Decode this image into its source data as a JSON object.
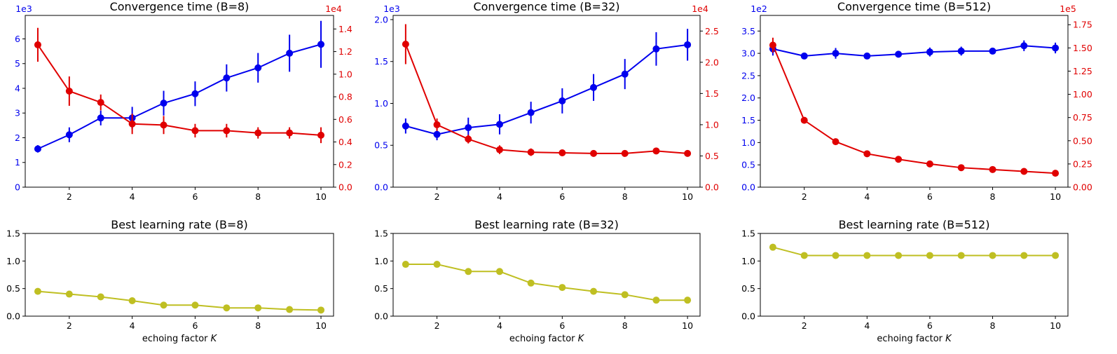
{
  "colors": {
    "blue": "#0000ee",
    "red": "#e00000",
    "olive": "#bfbf22",
    "axis": "#000000"
  },
  "chart_data": [
    {
      "type": "line",
      "title": "Convergence time (B=8)",
      "x": [
        1,
        2,
        3,
        4,
        5,
        6,
        7,
        8,
        9,
        10
      ],
      "x_ticks": [
        2,
        4,
        6,
        8,
        10
      ],
      "x_tick_labels": [
        "2",
        "4",
        "6",
        "8",
        "10"
      ],
      "xlim": [
        0.6,
        10.4
      ],
      "left_axis": {
        "multiplier_label": "1e3",
        "ylim": [
          0,
          6.95
        ],
        "ticks": [
          0,
          1,
          2,
          3,
          4,
          5,
          6
        ],
        "tick_labels": [
          "0",
          "1",
          "2",
          "3",
          "4",
          "5",
          "6"
        ]
      },
      "right_axis": {
        "multiplier_label": "1e4",
        "ylim": [
          0,
          1.52
        ],
        "ticks": [
          0,
          0.2,
          0.4,
          0.6,
          0.8,
          1.0,
          1.2,
          1.4
        ],
        "tick_labels": [
          "0.0",
          "0.2",
          "0.4",
          "0.6",
          "0.8",
          "1.0",
          "1.2",
          "1.4"
        ]
      },
      "series": [
        {
          "name": "blue",
          "axis": "left",
          "values": [
            1.55,
            2.12,
            2.8,
            2.8,
            3.4,
            3.78,
            4.42,
            4.83,
            5.42,
            5.78
          ],
          "errors": [
            0.15,
            0.3,
            0.3,
            0.45,
            0.5,
            0.5,
            0.55,
            0.6,
            0.75,
            0.95
          ]
        },
        {
          "name": "red",
          "axis": "right",
          "values": [
            1.26,
            0.85,
            0.75,
            0.56,
            0.55,
            0.5,
            0.5,
            0.48,
            0.48,
            0.46
          ],
          "errors": [
            0.15,
            0.13,
            0.07,
            0.09,
            0.08,
            0.06,
            0.06,
            0.05,
            0.05,
            0.07
          ]
        }
      ]
    },
    {
      "type": "line",
      "title": "Convergence time (B=32)",
      "x": [
        1,
        2,
        3,
        4,
        5,
        6,
        7,
        8,
        9,
        10
      ],
      "x_ticks": [
        2,
        4,
        6,
        8,
        10
      ],
      "x_tick_labels": [
        "2",
        "4",
        "6",
        "8",
        "10"
      ],
      "xlim": [
        0.6,
        10.4
      ],
      "left_axis": {
        "multiplier_label": "1e3",
        "ylim": [
          0,
          2.05
        ],
        "ticks": [
          0,
          0.5,
          1.0,
          1.5,
          2.0
        ],
        "tick_labels": [
          "0.0",
          "0.5",
          "1.0",
          "1.5",
          "2.0"
        ]
      },
      "right_axis": {
        "multiplier_label": "1e4",
        "ylim": [
          0,
          2.75
        ],
        "ticks": [
          0,
          0.5,
          1.0,
          1.5,
          2.0,
          2.5
        ],
        "tick_labels": [
          "0.0",
          "0.5",
          "1.0",
          "1.5",
          "2.0",
          "2.5"
        ]
      },
      "series": [
        {
          "name": "blue",
          "axis": "left",
          "values": [
            0.73,
            0.63,
            0.71,
            0.75,
            0.89,
            1.03,
            1.19,
            1.35,
            1.65,
            1.7
          ],
          "errors": [
            0.09,
            0.07,
            0.12,
            0.12,
            0.13,
            0.15,
            0.16,
            0.18,
            0.2,
            0.19
          ]
        },
        {
          "name": "red",
          "axis": "right",
          "values": [
            2.29,
            1.0,
            0.77,
            0.6,
            0.56,
            0.55,
            0.54,
            0.54,
            0.58,
            0.54
          ],
          "errors": [
            0.32,
            0.1,
            0.07,
            0.07,
            0.06,
            0.05,
            0.04,
            0.04,
            0.04,
            0.04
          ]
        }
      ]
    },
    {
      "type": "line",
      "title": "Convergence time (B=512)",
      "x": [
        1,
        2,
        3,
        4,
        5,
        6,
        7,
        8,
        9,
        10
      ],
      "x_ticks": [
        2,
        4,
        6,
        8,
        10
      ],
      "x_tick_labels": [
        "2",
        "4",
        "6",
        "8",
        "10"
      ],
      "xlim": [
        0.6,
        10.4
      ],
      "left_axis": {
        "multiplier_label": "1e2",
        "ylim": [
          0,
          3.85
        ],
        "ticks": [
          0,
          0.5,
          1.0,
          1.5,
          2.0,
          2.5,
          3.0,
          3.5
        ],
        "tick_labels": [
          "0.0",
          "0.5",
          "1.0",
          "1.5",
          "2.0",
          "2.5",
          "3.0",
          "3.5"
        ]
      },
      "right_axis": {
        "multiplier_label": "1e5",
        "ylim": [
          0,
          1.85
        ],
        "ticks": [
          0,
          0.25,
          0.5,
          0.75,
          1.0,
          1.25,
          1.5,
          1.75
        ],
        "tick_labels": [
          "0.00",
          "0.25",
          "0.50",
          "0.75",
          "1.00",
          "1.25",
          "1.50",
          "1.75"
        ]
      },
      "series": [
        {
          "name": "blue",
          "axis": "left",
          "values": [
            3.1,
            2.94,
            3.0,
            2.94,
            2.98,
            3.03,
            3.05,
            3.05,
            3.17,
            3.12
          ],
          "errors": [
            0.15,
            0.05,
            0.12,
            0.05,
            0.07,
            0.1,
            0.1,
            0.07,
            0.12,
            0.12
          ]
        },
        {
          "name": "red",
          "axis": "right",
          "values": [
            1.53,
            0.72,
            0.49,
            0.36,
            0.3,
            0.25,
            0.21,
            0.19,
            0.17,
            0.15
          ],
          "errors": [
            0.08,
            0.02,
            0.02,
            0.02,
            0.02,
            0.02,
            0.02,
            0.02,
            0.02,
            0.02
          ]
        }
      ]
    },
    {
      "type": "line",
      "title": "Best learning rate (B=8)",
      "x": [
        1,
        2,
        3,
        4,
        5,
        6,
        7,
        8,
        9,
        10
      ],
      "x_ticks": [
        2,
        4,
        6,
        8,
        10
      ],
      "x_tick_labels": [
        "2",
        "4",
        "6",
        "8",
        "10"
      ],
      "xlim": [
        0.6,
        10.4
      ],
      "xlabel": "echoing factor",
      "xlabel_var": "K",
      "left_axis": {
        "ylim": [
          0,
          1.5
        ],
        "ticks": [
          0,
          0.5,
          1.0,
          1.5
        ],
        "tick_labels": [
          "0.0",
          "0.5",
          "1.0",
          "1.5"
        ]
      },
      "series": [
        {
          "name": "olive",
          "axis": "left",
          "values": [
            0.45,
            0.4,
            0.35,
            0.28,
            0.2,
            0.2,
            0.15,
            0.15,
            0.12,
            0.11
          ]
        }
      ]
    },
    {
      "type": "line",
      "title": "Best learning rate (B=32)",
      "x": [
        1,
        2,
        3,
        4,
        5,
        6,
        7,
        8,
        9,
        10
      ],
      "x_ticks": [
        2,
        4,
        6,
        8,
        10
      ],
      "x_tick_labels": [
        "2",
        "4",
        "6",
        "8",
        "10"
      ],
      "xlim": [
        0.6,
        10.4
      ],
      "xlabel": "echoing factor",
      "xlabel_var": "K",
      "left_axis": {
        "ylim": [
          0,
          1.5
        ],
        "ticks": [
          0,
          0.5,
          1.0,
          1.5
        ],
        "tick_labels": [
          "0.0",
          "0.5",
          "1.0",
          "1.5"
        ]
      },
      "series": [
        {
          "name": "olive",
          "axis": "left",
          "values": [
            0.94,
            0.94,
            0.81,
            0.81,
            0.6,
            0.52,
            0.45,
            0.39,
            0.29,
            0.29
          ]
        }
      ]
    },
    {
      "type": "line",
      "title": "Best learning rate (B=512)",
      "x": [
        1,
        2,
        3,
        4,
        5,
        6,
        7,
        8,
        9,
        10
      ],
      "x_ticks": [
        2,
        4,
        6,
        8,
        10
      ],
      "x_tick_labels": [
        "2",
        "4",
        "6",
        "8",
        "10"
      ],
      "xlim": [
        0.6,
        10.4
      ],
      "xlabel": "echoing factor",
      "xlabel_var": "K",
      "left_axis": {
        "ylim": [
          0,
          1.5
        ],
        "ticks": [
          0,
          0.5,
          1.0,
          1.5
        ],
        "tick_labels": [
          "0.0",
          "0.5",
          "1.0",
          "1.5"
        ]
      },
      "series": [
        {
          "name": "olive",
          "axis": "left",
          "values": [
            1.25,
            1.1,
            1.1,
            1.1,
            1.1,
            1.1,
            1.1,
            1.1,
            1.1,
            1.1
          ]
        }
      ]
    }
  ]
}
